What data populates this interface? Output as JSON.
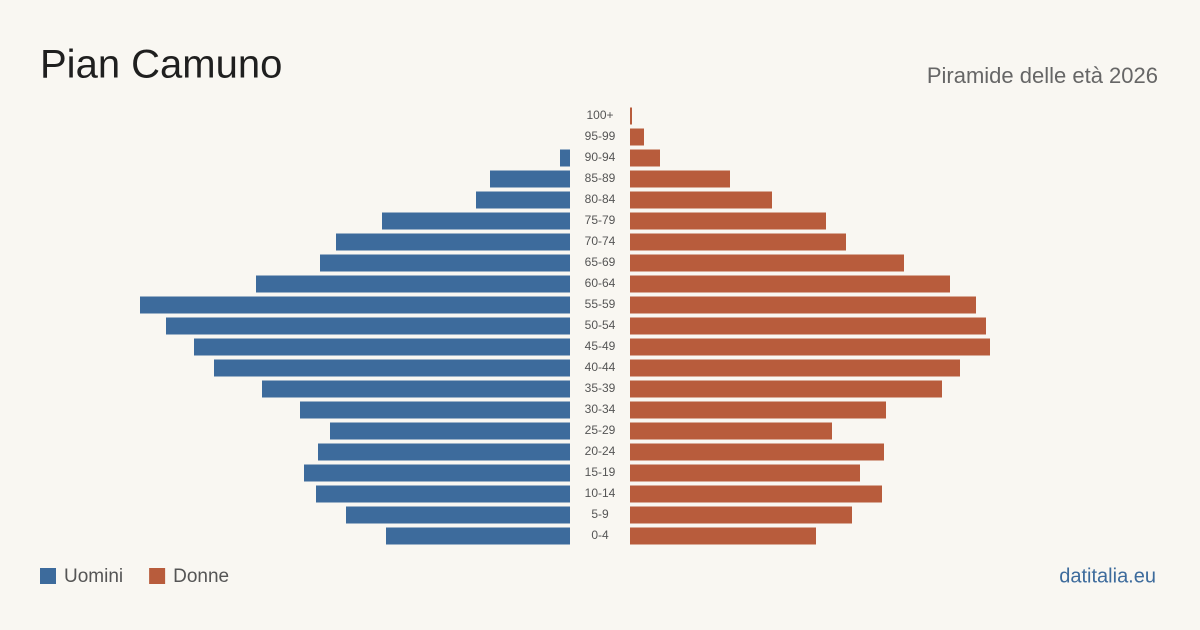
{
  "chart_data": {
    "type": "pyramid",
    "title": "Pian Camuno",
    "subtitle": "Piramide delle età 2026",
    "source": "datitalia.eu",
    "categories": [
      "0-4",
      "5-9",
      "10-14",
      "15-19",
      "20-24",
      "25-29",
      "30-34",
      "35-39",
      "40-44",
      "45-49",
      "50-54",
      "55-59",
      "60-64",
      "65-69",
      "70-74",
      "75-79",
      "80-84",
      "85-89",
      "90-94",
      "95-99",
      "100+"
    ],
    "series": [
      {
        "name": "Uomini",
        "color": "#3d6b9c",
        "values": [
          92,
          112,
          127,
          133,
          126,
          120,
          135,
          154,
          178,
          188,
          202,
          215,
          157,
          125,
          117,
          94,
          47,
          40,
          5,
          0,
          0
        ]
      },
      {
        "name": "Donne",
        "color": "#b85c3c",
        "values": [
          93,
          111,
          126,
          115,
          127,
          101,
          128,
          156,
          165,
          180,
          178,
          173,
          160,
          137,
          108,
          98,
          71,
          50,
          15,
          7,
          1
        ]
      }
    ]
  }
}
